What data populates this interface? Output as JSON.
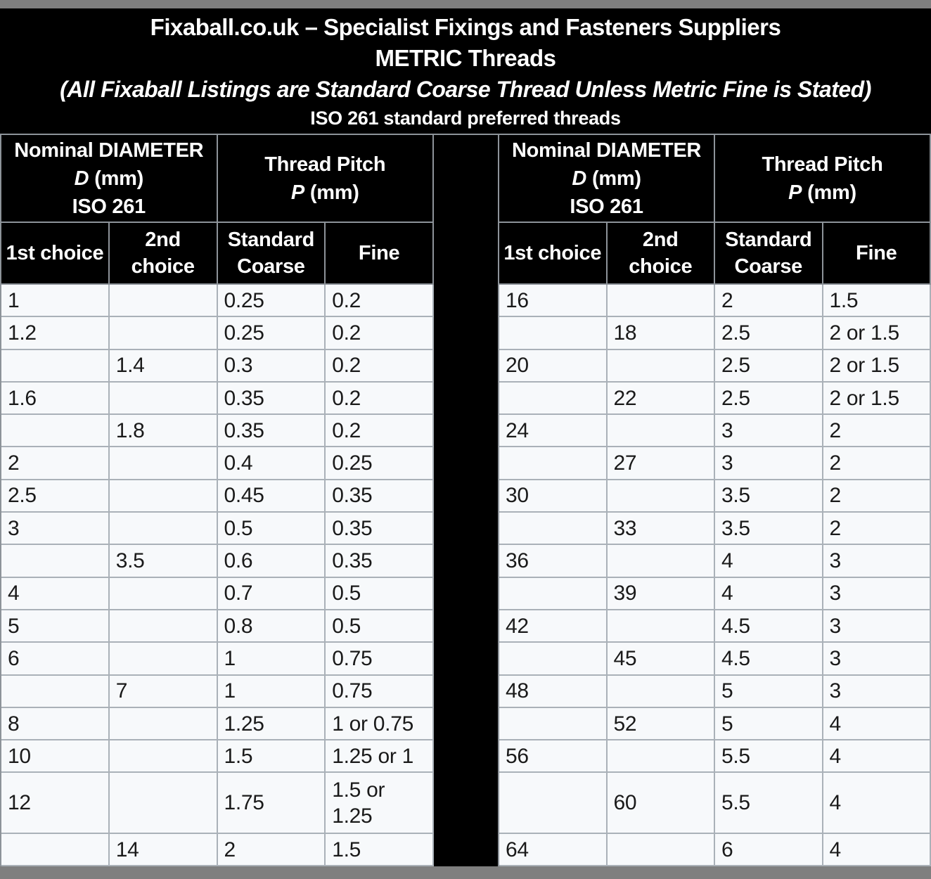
{
  "title": {
    "line1": "Fixaball.co.uk – Specialist Fixings and Fasteners Suppliers",
    "line2": "METRIC Threads",
    "line3": "(All Fixaball Listings are Standard Coarse Thread Unless Metric Fine is Stated)",
    "line4": "ISO 261 standard preferred threads"
  },
  "colors": {
    "table_black": "#000000",
    "cell_background": "#f7f9fb",
    "data_border": "#aab1b8",
    "header_border": "#8d9399",
    "outer_gray": "#7f7f7f",
    "header_text": "#ffffff",
    "data_text": "#1a1a1a"
  },
  "tables": [
    {
      "header": {
        "diameter_title": "Nominal DIAMETER",
        "diameter_symbol": "D",
        "diameter_unit": "(mm)",
        "diameter_standard": "ISO 261",
        "pitch_title": "Thread Pitch",
        "pitch_symbol": "P",
        "pitch_unit": "(mm)"
      },
      "columns": [
        "1st choice",
        "2nd choice",
        "Standard Coarse",
        "Fine"
      ],
      "rows": [
        [
          "1",
          "",
          "0.25",
          "0.2"
        ],
        [
          "1.2",
          "",
          "0.25",
          "0.2"
        ],
        [
          "",
          "1.4",
          "0.3",
          "0.2"
        ],
        [
          "1.6",
          "",
          "0.35",
          "0.2"
        ],
        [
          "",
          "1.8",
          "0.35",
          "0.2"
        ],
        [
          "2",
          "",
          "0.4",
          "0.25"
        ],
        [
          "2.5",
          "",
          "0.45",
          "0.35"
        ],
        [
          "3",
          "",
          "0.5",
          "0.35"
        ],
        [
          "",
          "3.5",
          "0.6",
          "0.35"
        ],
        [
          "4",
          "",
          "0.7",
          "0.5"
        ],
        [
          "5",
          "",
          "0.8",
          "0.5"
        ],
        [
          "6",
          "",
          "1",
          "0.75"
        ],
        [
          "",
          "7",
          "1",
          "0.75"
        ],
        [
          "8",
          "",
          "1.25",
          "1 or 0.75"
        ],
        [
          "10",
          "",
          "1.5",
          "1.25 or 1"
        ],
        [
          "12",
          "",
          "1.75",
          "1.5 or 1.25"
        ],
        [
          "",
          "14",
          "2",
          "1.5"
        ]
      ]
    },
    {
      "header": {
        "diameter_title": "Nominal DIAMETER",
        "diameter_symbol": "D",
        "diameter_unit": "(mm)",
        "diameter_standard": "ISO 261",
        "pitch_title": "Thread Pitch",
        "pitch_symbol": "P",
        "pitch_unit": "(mm)"
      },
      "columns": [
        "1st choice",
        "2nd choice",
        "Standard Coarse",
        "Fine"
      ],
      "rows": [
        [
          "16",
          "",
          "2",
          "1.5"
        ],
        [
          "",
          "18",
          "2.5",
          "2 or 1.5"
        ],
        [
          "20",
          "",
          "2.5",
          "2 or 1.5"
        ],
        [
          "",
          "22",
          "2.5",
          "2 or 1.5"
        ],
        [
          "24",
          "",
          "3",
          "2"
        ],
        [
          "",
          "27",
          "3",
          "2"
        ],
        [
          "30",
          "",
          "3.5",
          "2"
        ],
        [
          "",
          "33",
          "3.5",
          "2"
        ],
        [
          "36",
          "",
          "4",
          "3"
        ],
        [
          "",
          "39",
          "4",
          "3"
        ],
        [
          "42",
          "",
          "4.5",
          "3"
        ],
        [
          "",
          "45",
          "4.5",
          "3"
        ],
        [
          "48",
          "",
          "5",
          "3"
        ],
        [
          "",
          "52",
          "5",
          "4"
        ],
        [
          "56",
          "",
          "5.5",
          "4"
        ],
        [
          "",
          "60",
          "5.5",
          "4"
        ],
        [
          "64",
          "",
          "6",
          "4"
        ]
      ]
    }
  ]
}
